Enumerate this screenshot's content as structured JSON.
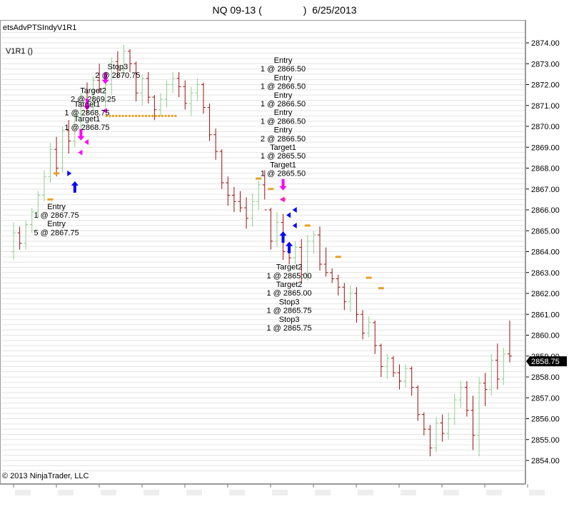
{
  "header": {
    "instrument": "NQ 09-13 (",
    "close_paren": ")",
    "date": "6/25/2013"
  },
  "indicator_name": "etsAdvPTSIndyV1R1",
  "series_label": "V1R1 ()",
  "copyright": "© 2013 NinjaTrader, LLC",
  "last_price": "2858.75",
  "colors": {
    "up_bar": "#90d090",
    "down_bar": "#a01010",
    "level_marker": "#e8a020",
    "entry_arrow": "#0000ff",
    "target_arrow": "#ff00ff",
    "grid": "#e4e4e4",
    "last_price_box": "#000000"
  },
  "chart_data": {
    "type": "ohlc",
    "price_axis": {
      "min": 2853.5,
      "max": 2874.5,
      "tick_labels": [
        "2874.00",
        "2873.00",
        "2872.00",
        "2871.00",
        "2870.00",
        "2869.00",
        "2868.00",
        "2867.00",
        "2866.00",
        "2865.00",
        "2864.00",
        "2863.00",
        "2862.00",
        "2861.00",
        "2860.00",
        "2859.00",
        "2858.00",
        "2857.00",
        "2856.00",
        "2855.00",
        "2854.00"
      ],
      "grid_step": 0.25
    },
    "bars": [
      {
        "o": 2864.0,
        "h": 2865.4,
        "l": 2863.6,
        "c": 2864.9
      },
      {
        "o": 2864.9,
        "h": 2865.2,
        "l": 2864.1,
        "c": 2864.4
      },
      {
        "o": 2864.4,
        "h": 2865.5,
        "l": 2864.1,
        "c": 2865.3
      },
      {
        "o": 2865.3,
        "h": 2866.1,
        "l": 2864.9,
        "c": 2865.9
      },
      {
        "o": 2865.9,
        "h": 2866.9,
        "l": 2865.6,
        "c": 2866.7
      },
      {
        "o": 2866.7,
        "h": 2867.9,
        "l": 2866.4,
        "c": 2867.6
      },
      {
        "o": 2867.6,
        "h": 2869.2,
        "l": 2867.3,
        "c": 2868.9
      },
      {
        "o": 2868.9,
        "h": 2869.5,
        "l": 2867.6,
        "c": 2868.0
      },
      {
        "o": 2868.0,
        "h": 2870.0,
        "l": 2867.8,
        "c": 2869.8
      },
      {
        "o": 2869.8,
        "h": 2870.3,
        "l": 2868.7,
        "c": 2869.3
      },
      {
        "o": 2869.3,
        "h": 2870.8,
        "l": 2869.0,
        "c": 2870.6
      },
      {
        "o": 2870.6,
        "h": 2871.6,
        "l": 2869.9,
        "c": 2871.3
      },
      {
        "o": 2871.3,
        "h": 2872.1,
        "l": 2870.6,
        "c": 2870.9
      },
      {
        "o": 2870.9,
        "h": 2872.4,
        "l": 2870.7,
        "c": 2872.2
      },
      {
        "o": 2872.2,
        "h": 2873.0,
        "l": 2871.6,
        "c": 2871.8
      },
      {
        "o": 2871.8,
        "h": 2872.4,
        "l": 2870.9,
        "c": 2872.0
      },
      {
        "o": 2872.0,
        "h": 2873.3,
        "l": 2871.5,
        "c": 2873.1
      },
      {
        "o": 2873.1,
        "h": 2873.6,
        "l": 2872.3,
        "c": 2872.7
      },
      {
        "o": 2872.7,
        "h": 2873.9,
        "l": 2872.4,
        "c": 2873.6
      },
      {
        "o": 2873.6,
        "h": 2873.7,
        "l": 2872.6,
        "c": 2873.0
      },
      {
        "o": 2873.0,
        "h": 2873.1,
        "l": 2871.2,
        "c": 2871.6
      },
      {
        "o": 2871.6,
        "h": 2872.5,
        "l": 2871.0,
        "c": 2872.3
      },
      {
        "o": 2872.3,
        "h": 2872.6,
        "l": 2871.1,
        "c": 2871.4
      },
      {
        "o": 2871.4,
        "h": 2871.5,
        "l": 2870.3,
        "c": 2870.8
      },
      {
        "o": 2870.8,
        "h": 2871.6,
        "l": 2870.5,
        "c": 2871.3
      },
      {
        "o": 2871.3,
        "h": 2872.2,
        "l": 2870.9,
        "c": 2872.0
      },
      {
        "o": 2872.0,
        "h": 2872.6,
        "l": 2871.6,
        "c": 2872.3
      },
      {
        "o": 2872.3,
        "h": 2872.6,
        "l": 2871.4,
        "c": 2871.9
      },
      {
        "o": 2871.9,
        "h": 2872.2,
        "l": 2870.8,
        "c": 2871.1
      },
      {
        "o": 2871.1,
        "h": 2871.9,
        "l": 2870.5,
        "c": 2871.6
      },
      {
        "o": 2871.6,
        "h": 2872.3,
        "l": 2871.2,
        "c": 2872.0
      },
      {
        "o": 2872.0,
        "h": 2872.1,
        "l": 2870.6,
        "c": 2870.9
      },
      {
        "o": 2870.9,
        "h": 2871.1,
        "l": 2869.3,
        "c": 2869.6
      },
      {
        "o": 2869.6,
        "h": 2869.9,
        "l": 2868.4,
        "c": 2868.8
      },
      {
        "o": 2868.8,
        "h": 2868.9,
        "l": 2867.0,
        "c": 2867.3
      },
      {
        "o": 2867.3,
        "h": 2867.6,
        "l": 2866.2,
        "c": 2866.7
      },
      {
        "o": 2866.7,
        "h": 2867.1,
        "l": 2865.9,
        "c": 2866.4
      },
      {
        "o": 2866.4,
        "h": 2866.9,
        "l": 2865.9,
        "c": 2866.1
      },
      {
        "o": 2866.1,
        "h": 2866.6,
        "l": 2865.1,
        "c": 2865.6
      },
      {
        "o": 2865.6,
        "h": 2866.8,
        "l": 2865.2,
        "c": 2866.4
      },
      {
        "o": 2866.4,
        "h": 2867.4,
        "l": 2866.0,
        "c": 2867.2
      },
      {
        "o": 2867.2,
        "h": 2867.9,
        "l": 2866.5,
        "c": 2866.0
      },
      {
        "o": 2866.0,
        "h": 2866.1,
        "l": 2864.1,
        "c": 2864.5
      },
      {
        "o": 2864.5,
        "h": 2865.9,
        "l": 2864.2,
        "c": 2865.4
      },
      {
        "o": 2865.4,
        "h": 2865.8,
        "l": 2863.6,
        "c": 2864.0
      },
      {
        "o": 2864.0,
        "h": 2864.3,
        "l": 2863.4,
        "c": 2863.7
      },
      {
        "o": 2863.7,
        "h": 2864.5,
        "l": 2863.4,
        "c": 2864.2
      },
      {
        "o": 2864.2,
        "h": 2864.6,
        "l": 2862.5,
        "c": 2862.9
      },
      {
        "o": 2862.9,
        "h": 2864.8,
        "l": 2862.6,
        "c": 2864.5
      },
      {
        "o": 2864.5,
        "h": 2865.0,
        "l": 2863.9,
        "c": 2864.8
      },
      {
        "o": 2864.8,
        "h": 2865.2,
        "l": 2863.1,
        "c": 2863.4
      },
      {
        "o": 2863.4,
        "h": 2864.2,
        "l": 2862.8,
        "c": 2863.0
      },
      {
        "o": 2863.0,
        "h": 2863.2,
        "l": 2862.5,
        "c": 2862.7
      },
      {
        "o": 2862.7,
        "h": 2862.9,
        "l": 2861.9,
        "c": 2862.3
      },
      {
        "o": 2862.3,
        "h": 2862.5,
        "l": 2861.2,
        "c": 2861.6
      },
      {
        "o": 2861.6,
        "h": 2862.4,
        "l": 2861.1,
        "c": 2862.0
      },
      {
        "o": 2862.0,
        "h": 2862.3,
        "l": 2860.6,
        "c": 2861.0
      },
      {
        "o": 2861.0,
        "h": 2861.2,
        "l": 2859.8,
        "c": 2860.1
      },
      {
        "o": 2860.1,
        "h": 2860.9,
        "l": 2859.9,
        "c": 2860.6
      },
      {
        "o": 2860.6,
        "h": 2860.7,
        "l": 2859.1,
        "c": 2859.5
      },
      {
        "o": 2859.5,
        "h": 2859.6,
        "l": 2858.0,
        "c": 2858.5
      },
      {
        "o": 2858.5,
        "h": 2859.1,
        "l": 2857.9,
        "c": 2858.9
      },
      {
        "o": 2858.9,
        "h": 2859.0,
        "l": 2858.0,
        "c": 2858.2
      },
      {
        "o": 2858.2,
        "h": 2858.6,
        "l": 2857.4,
        "c": 2857.8
      },
      {
        "o": 2857.8,
        "h": 2858.6,
        "l": 2857.5,
        "c": 2858.4
      },
      {
        "o": 2858.4,
        "h": 2858.5,
        "l": 2857.1,
        "c": 2857.5
      },
      {
        "o": 2857.5,
        "h": 2857.6,
        "l": 2855.9,
        "c": 2856.2
      },
      {
        "o": 2856.2,
        "h": 2856.3,
        "l": 2855.2,
        "c": 2855.5
      },
      {
        "o": 2855.5,
        "h": 2855.7,
        "l": 2854.2,
        "c": 2854.6
      },
      {
        "o": 2854.6,
        "h": 2856.1,
        "l": 2854.4,
        "c": 2855.8
      },
      {
        "o": 2855.8,
        "h": 2856.2,
        "l": 2854.9,
        "c": 2855.3
      },
      {
        "o": 2855.3,
        "h": 2856.3,
        "l": 2855.0,
        "c": 2856.0
      },
      {
        "o": 2856.0,
        "h": 2857.2,
        "l": 2855.7,
        "c": 2856.9
      },
      {
        "o": 2856.9,
        "h": 2857.8,
        "l": 2856.5,
        "c": 2857.5
      },
      {
        "o": 2857.5,
        "h": 2857.8,
        "l": 2856.1,
        "c": 2856.4
      },
      {
        "o": 2856.4,
        "h": 2857.1,
        "l": 2854.5,
        "c": 2855.2
      },
      {
        "o": 2855.2,
        "h": 2858.0,
        "l": 2854.2,
        "c": 2857.7
      },
      {
        "o": 2857.7,
        "h": 2858.2,
        "l": 2856.6,
        "c": 2857.4
      },
      {
        "o": 2857.4,
        "h": 2859.1,
        "l": 2857.1,
        "c": 2858.8
      },
      {
        "o": 2858.8,
        "h": 2859.6,
        "l": 2857.4,
        "c": 2857.9
      },
      {
        "o": 2857.9,
        "h": 2859.4,
        "l": 2857.6,
        "c": 2859.1
      },
      {
        "o": 2859.1,
        "h": 2860.7,
        "l": 2858.7,
        "c": 2859.0
      }
    ],
    "level_markers": [
      {
        "bar": 7,
        "price": 2867.75
      },
      {
        "bar": 6,
        "price": 2866.5
      },
      {
        "bar": 15,
        "price": 2870.5,
        "span": 12
      },
      {
        "bar": 40,
        "price": 2867.5
      },
      {
        "bar": 42,
        "price": 2867.0
      },
      {
        "bar": 44,
        "price": 2866.5
      },
      {
        "bar": 48,
        "price": 2865.25
      },
      {
        "bar": 53,
        "price": 2863.75
      },
      {
        "bar": 58,
        "price": 2862.75
      },
      {
        "bar": 60,
        "price": 2862.25
      }
    ],
    "markers": [
      {
        "kind": "up-arrow",
        "color": "entry",
        "bar": 10,
        "price": 2867.1
      },
      {
        "kind": "right-triangle",
        "color": "entry",
        "bar": 9,
        "price": 2867.75
      },
      {
        "kind": "down-arrow",
        "color": "target",
        "bar": 11,
        "price": 2869.6
      },
      {
        "kind": "left-triangle",
        "color": "target",
        "bar": 12,
        "price": 2869.25
      },
      {
        "kind": "left-triangle",
        "color": "target",
        "bar": 11,
        "price": 2868.75
      },
      {
        "kind": "down-arrow",
        "color": "target",
        "bar": 12,
        "price": 2871.05
      },
      {
        "kind": "down-arrow",
        "color": "target",
        "bar": 15,
        "price": 2872.3
      },
      {
        "kind": "left-triangle",
        "color": "target",
        "bar": 15,
        "price": 2870.75
      },
      {
        "kind": "down-arrow",
        "color": "target",
        "bar": 44,
        "price": 2867.2
      },
      {
        "kind": "left-triangle",
        "color": "target",
        "bar": 44,
        "price": 2866.5
      },
      {
        "kind": "left-triangle",
        "color": "entry",
        "bar": 46,
        "price": 2866.0
      },
      {
        "kind": "left-triangle",
        "color": "entry",
        "bar": 45,
        "price": 2865.75
      },
      {
        "kind": "left-triangle",
        "color": "entry",
        "bar": 46,
        "price": 2865.25
      },
      {
        "kind": "up-arrow",
        "color": "entry",
        "bar": 44,
        "price": 2864.7
      },
      {
        "kind": "up-arrow",
        "color": "entry",
        "bar": 45,
        "price": 2864.2
      }
    ],
    "annotations": [
      {
        "bar": 7,
        "price": 2866.35,
        "lines": [
          "Entry",
          "1 @ 2867.75",
          "Entry",
          "5 @ 2867.75"
        ]
      },
      {
        "bar": 17,
        "price": 2873.05,
        "lines": [
          "Stop3",
          "2 @ 2870.75"
        ]
      },
      {
        "bar": 13,
        "price": 2871.9,
        "lines": [
          "Target2",
          "2 @ 2869.25"
        ]
      },
      {
        "bar": 12,
        "price": 2871.25,
        "lines": [
          "Target1",
          "1 @ 2868.75"
        ]
      },
      {
        "bar": 12,
        "price": 2870.55,
        "lines": [
          "Target1",
          "1 @ 2868.75"
        ]
      },
      {
        "bar": 44,
        "price": 2873.35,
        "lines": [
          "Entry",
          "1 @ 2866.50",
          "Entry",
          "1 @ 2866.50",
          "Entry",
          "1 @ 2866.50",
          "Entry",
          "1 @ 2866.50",
          "Entry",
          "2 @ 2866.50",
          "Target1",
          "1 @ 2865.50",
          "Target1",
          "1 @ 2865.50"
        ]
      },
      {
        "bar": 45,
        "price": 2863.45,
        "lines": [
          "Target2",
          "1 @ 2865.00",
          "Target2",
          "1 @ 2865.00",
          "Stop3",
          "1 @ 2865.75",
          "Stop3",
          "1 @ 2865.75"
        ]
      }
    ],
    "time_ticks": 13
  }
}
